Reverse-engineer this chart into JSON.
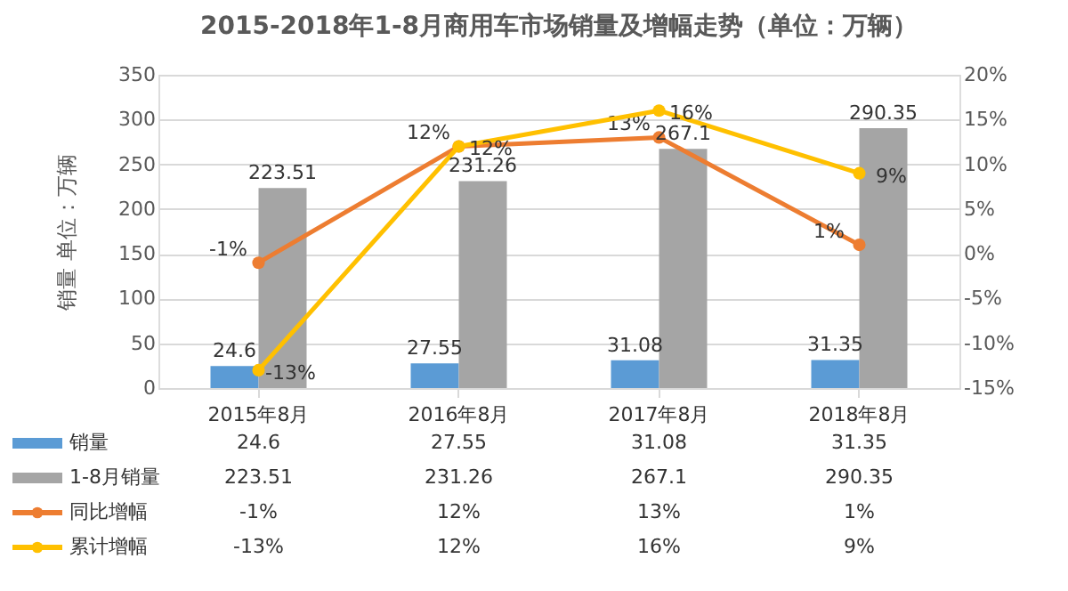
{
  "chart_data": {
    "type": "bar",
    "title": "2015-2018年1-8月商用车市场销量及增幅走势（单位：万辆）",
    "ylabel": "销量 单位：万辆",
    "categories": [
      "2015年8月",
      "2016年8月",
      "2017年8月",
      "2018年8月"
    ],
    "series": [
      {
        "name": "销量",
        "color": "#5b9bd5",
        "values": [
          24.6,
          27.55,
          31.08,
          31.35
        ],
        "value_labels": [
          "24.6",
          "27.55",
          "31.08",
          "31.35"
        ]
      },
      {
        "name": "1-8月销量",
        "color": "#a5a5a5",
        "values": [
          223.51,
          231.26,
          267.1,
          290.35
        ],
        "value_labels": [
          "223.51",
          "231.26",
          "267.1",
          "290.35"
        ]
      },
      {
        "name": "同比增幅",
        "type": "line",
        "axis": "y2",
        "color": "#ed7d31",
        "values": [
          -1,
          12,
          13,
          1
        ],
        "value_labels": [
          "-1%",
          "12%",
          "13%",
          "1%"
        ]
      },
      {
        "name": "累计增幅",
        "type": "line",
        "axis": "y2",
        "color": "#ffc000",
        "values": [
          -13,
          12,
          16,
          9
        ],
        "value_labels": [
          "-13%",
          "12%",
          "16%",
          "9%"
        ]
      }
    ],
    "ylim": [
      0,
      350
    ],
    "yticks": [
      0,
      50,
      100,
      150,
      200,
      250,
      300,
      350
    ],
    "y2lim": [
      -15,
      20
    ],
    "y2ticks": [
      {
        "value": -15,
        "label": "-15%"
      },
      {
        "value": -10,
        "label": "-10%"
      },
      {
        "value": -5,
        "label": "-5%"
      },
      {
        "value": 0,
        "label": "0%"
      },
      {
        "value": 5,
        "label": "5%"
      },
      {
        "value": 10,
        "label": "10%"
      },
      {
        "value": 15,
        "label": "15%"
      },
      {
        "value": 20,
        "label": "20%"
      }
    ],
    "grid": "y",
    "legend": "bottom",
    "marker": "circle",
    "line_style": "solid"
  }
}
